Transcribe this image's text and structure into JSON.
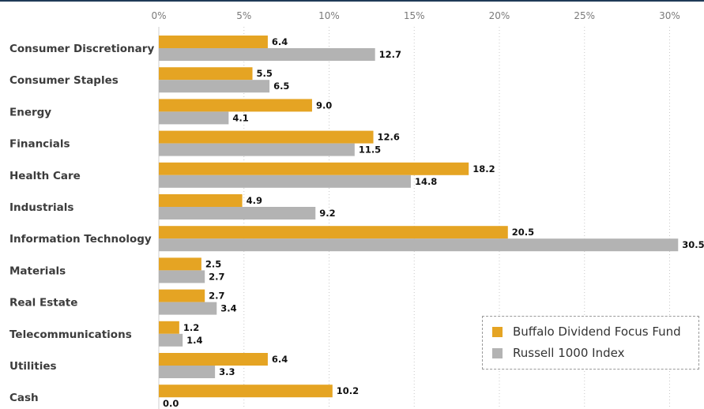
{
  "chart_data": {
    "type": "bar",
    "orientation": "horizontal",
    "categories": [
      "Consumer Discretionary",
      "Consumer Staples",
      "Energy",
      "Financials",
      "Health Care",
      "Industrials",
      "Information Technology",
      "Materials",
      "Real Estate",
      "Telecommunications",
      "Utilities",
      "Cash"
    ],
    "series": [
      {
        "name": "Buffalo Dividend Focus Fund",
        "color": "#e5a423",
        "values": [
          6.4,
          5.5,
          9.0,
          12.6,
          18.2,
          4.9,
          20.5,
          2.5,
          2.7,
          1.2,
          6.4,
          10.2
        ],
        "labels": [
          "6.4",
          "5.5",
          "9.0",
          "12.6",
          "18.2",
          "4.9",
          "20.5",
          "2.5",
          "2.7",
          "1.2",
          "6.4",
          "10.2"
        ]
      },
      {
        "name": "Russell 1000 Index",
        "color": "#b3b3b3",
        "values": [
          12.7,
          6.5,
          4.1,
          11.5,
          14.8,
          9.2,
          30.5,
          2.7,
          3.4,
          1.4,
          3.3,
          0.0
        ],
        "labels": [
          "12.7",
          "6.5",
          "4.1",
          "11.5",
          "14.8",
          "9.2",
          "30.5",
          "2.7",
          "3.4",
          "1.4",
          "3.3",
          "0.0"
        ]
      }
    ],
    "xticks": [
      0,
      5,
      10,
      15,
      20,
      25,
      30
    ],
    "xtick_labels": [
      "0%",
      "5%",
      "10%",
      "15%",
      "20%",
      "25%",
      "30%"
    ],
    "xlim": [
      0,
      30.5
    ],
    "grid": "vertical dotted",
    "axis_position": "top",
    "legend_position": "bottom-right",
    "gridline_color": "#c8c8c8"
  }
}
